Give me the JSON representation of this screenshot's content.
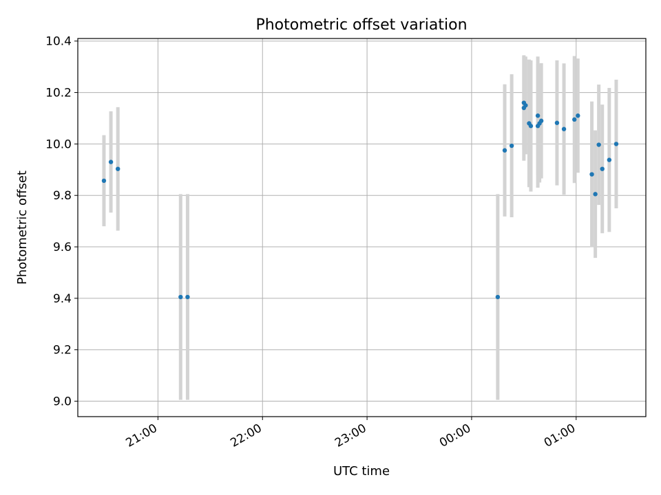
{
  "chart_data": {
    "type": "scatter",
    "title": "Photometric offset variation",
    "xlabel": "UTC time",
    "ylabel": "Photometric offset",
    "x_unit": "UTC time (HH:MM)",
    "xlim": [
      "20:14",
      "01:40"
    ],
    "ylim": [
      8.94,
      10.41
    ],
    "x_ticks": [
      "21:00",
      "22:00",
      "23:00",
      "00:00",
      "01:00"
    ],
    "y_ticks": [
      "9.0",
      "9.2",
      "9.4",
      "9.6",
      "9.8",
      "10.0",
      "10.2",
      "10.4"
    ],
    "grid": true,
    "point_color": "#1f77b4",
    "errorbar_color": "#d3d3d3",
    "points": [
      {
        "t": "20:29",
        "y": 9.857,
        "err": 0.177
      },
      {
        "t": "20:33",
        "y": 9.93,
        "err": 0.197
      },
      {
        "t": "20:37",
        "y": 9.903,
        "err": 0.24
      },
      {
        "t": "21:13",
        "y": 9.405,
        "err": 0.4
      },
      {
        "t": "21:17",
        "y": 9.405,
        "err": 0.4
      },
      {
        "t": "00:15",
        "y": 9.405,
        "err": 0.4
      },
      {
        "t": "00:19",
        "y": 9.975,
        "err": 0.257
      },
      {
        "t": "00:23",
        "y": 9.993,
        "err": 0.278
      },
      {
        "t": "00:30",
        "y": 10.14,
        "err": 0.205
      },
      {
        "t": "00:30",
        "y": 10.16,
        "err": 0.18
      },
      {
        "t": "00:31",
        "y": 10.15,
        "err": 0.19
      },
      {
        "t": "00:33",
        "y": 10.08,
        "err": 0.248
      },
      {
        "t": "00:34",
        "y": 10.07,
        "err": 0.255
      },
      {
        "t": "00:38",
        "y": 10.11,
        "err": 0.23
      },
      {
        "t": "00:38",
        "y": 10.07,
        "err": 0.24
      },
      {
        "t": "00:39",
        "y": 10.08,
        "err": 0.23
      },
      {
        "t": "00:40",
        "y": 10.09,
        "err": 0.224
      },
      {
        "t": "00:49",
        "y": 10.082,
        "err": 0.243
      },
      {
        "t": "00:53",
        "y": 10.058,
        "err": 0.255
      },
      {
        "t": "00:59",
        "y": 10.095,
        "err": 0.247
      },
      {
        "t": "01:01",
        "y": 10.11,
        "err": 0.222
      },
      {
        "t": "01:09",
        "y": 9.882,
        "err": 0.283
      },
      {
        "t": "01:11",
        "y": 9.805,
        "err": 0.248
      },
      {
        "t": "01:13",
        "y": 9.997,
        "err": 0.234
      },
      {
        "t": "01:15",
        "y": 9.903,
        "err": 0.25
      },
      {
        "t": "01:19",
        "y": 9.938,
        "err": 0.28
      },
      {
        "t": "01:23",
        "y": 10.0,
        "err": 0.25
      }
    ]
  }
}
